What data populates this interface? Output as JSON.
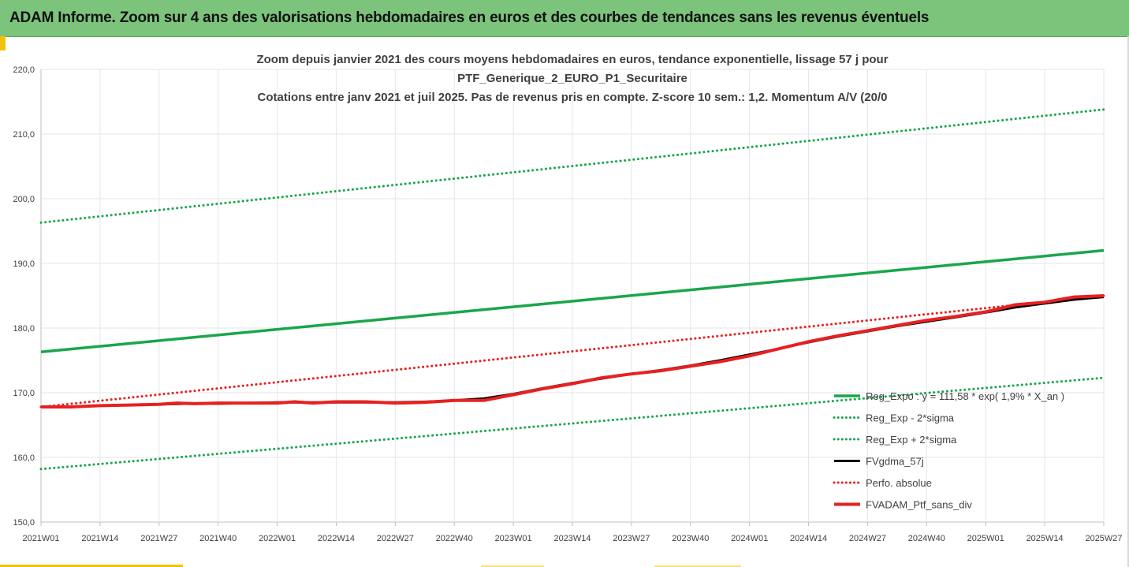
{
  "header": {
    "title": "ADAM Informe. Zoom sur 4 ans des valorisations hebdomadaires en euros et des courbes de tendances sans les revenus éventuels"
  },
  "chart_data": {
    "type": "line",
    "title_lines": [
      "Zoom depuis janvier 2021 des cours moyens hebdomadaires  en euros, tendance exponentielle, lissage 57 j pour",
      "PTF_Generique_2_EURO_P1_Securitaire",
      "Cotations entre janv 2021 et juil 2025. Pas de revenus pris en compte. Z-score 10 sem.: 1,2. Momentum A/V (20/0"
    ],
    "x_ticks": [
      "2021W01",
      "2021W14",
      "2021W27",
      "2021W40",
      "2022W01",
      "2022W14",
      "2022W27",
      "2022W40",
      "2023W01",
      "2023W14",
      "2023W27",
      "2023W40",
      "2024W01",
      "2024W14",
      "2024W27",
      "2024W40",
      "2025W01",
      "2025W14",
      "2025W27"
    ],
    "y_ticks": [
      "150,0",
      "160,0",
      "170,0",
      "180,0",
      "190,0",
      "200,0",
      "210,0",
      "220,0"
    ],
    "ylim": [
      150,
      220
    ],
    "grid": true,
    "legend_position": "bottom-right",
    "series": [
      {
        "name": "Reg_Expo : y = 111,58 * exp( 1,9% *  X_an )",
        "color": "#1aa64a",
        "style": "solid",
        "width": 3.5,
        "points": [
          [
            0,
            176.3
          ],
          [
            18,
            192.0
          ]
        ]
      },
      {
        "name": "Reg_Exp - 2*sigma",
        "color": "#1aa64a",
        "style": "dotted",
        "width": 3,
        "points": [
          [
            0,
            158.2
          ],
          [
            18,
            172.3
          ]
        ]
      },
      {
        "name": "Reg_Exp + 2*sigma",
        "color": "#1aa64a",
        "style": "dotted",
        "width": 3,
        "points": [
          [
            0,
            196.3
          ],
          [
            18,
            213.8
          ]
        ]
      },
      {
        "name": "FVgdma_57j",
        "color": "#000000",
        "style": "solid",
        "width": 3,
        "points": [
          [
            0,
            167.8
          ],
          [
            0.5,
            167.8
          ],
          [
            1,
            168.0
          ],
          [
            1.5,
            168.1
          ],
          [
            2,
            168.2
          ],
          [
            2.5,
            168.3
          ],
          [
            3,
            168.3
          ],
          [
            3.5,
            168.4
          ],
          [
            4,
            168.5
          ],
          [
            4.5,
            168.5
          ],
          [
            5,
            168.5
          ],
          [
            5.5,
            168.5
          ],
          [
            6,
            168.5
          ],
          [
            6.5,
            168.6
          ],
          [
            7,
            168.8
          ],
          [
            7.5,
            169.1
          ],
          [
            8,
            169.8
          ],
          [
            8.5,
            170.7
          ],
          [
            9,
            171.5
          ],
          [
            9.5,
            172.2
          ],
          [
            10,
            172.9
          ],
          [
            10.5,
            173.5
          ],
          [
            11,
            174.2
          ],
          [
            11.5,
            175.0
          ],
          [
            12,
            175.9
          ],
          [
            12.5,
            176.8
          ],
          [
            13,
            177.8
          ],
          [
            13.5,
            178.7
          ],
          [
            14,
            179.5
          ],
          [
            14.5,
            180.3
          ],
          [
            15,
            181.0
          ],
          [
            15.5,
            181.7
          ],
          [
            16,
            182.4
          ],
          [
            16.5,
            183.2
          ],
          [
            17,
            183.8
          ],
          [
            17.5,
            184.4
          ],
          [
            18,
            184.8
          ]
        ]
      },
      {
        "name": "Perfo. absolue",
        "color": "#e82020",
        "style": "dotted",
        "width": 3,
        "points": [
          [
            0,
            167.8
          ],
          [
            18,
            185.0
          ]
        ]
      },
      {
        "name": "FVADAM_Ptf_sans_div",
        "color": "#e82020",
        "style": "solid",
        "width": 4,
        "points": [
          [
            0,
            167.8
          ],
          [
            0.5,
            167.8
          ],
          [
            1,
            168.0
          ],
          [
            1.5,
            168.1
          ],
          [
            2,
            168.2
          ],
          [
            2.3,
            168.4
          ],
          [
            2.6,
            168.3
          ],
          [
            3,
            168.4
          ],
          [
            3.5,
            168.4
          ],
          [
            4,
            168.4
          ],
          [
            4.3,
            168.6
          ],
          [
            4.6,
            168.4
          ],
          [
            5,
            168.6
          ],
          [
            5.5,
            168.6
          ],
          [
            6,
            168.4
          ],
          [
            6.5,
            168.5
          ],
          [
            7,
            168.8
          ],
          [
            7.5,
            168.8
          ],
          [
            8,
            169.7
          ],
          [
            8.5,
            170.6
          ],
          [
            9,
            171.4
          ],
          [
            9.5,
            172.3
          ],
          [
            10,
            172.9
          ],
          [
            10.5,
            173.4
          ],
          [
            11,
            174.1
          ],
          [
            11.5,
            174.8
          ],
          [
            12,
            175.7
          ],
          [
            12.5,
            176.8
          ],
          [
            13,
            177.9
          ],
          [
            13.5,
            178.8
          ],
          [
            14,
            179.6
          ],
          [
            14.5,
            180.4
          ],
          [
            15,
            181.2
          ],
          [
            15.5,
            181.8
          ],
          [
            16,
            182.5
          ],
          [
            16.5,
            183.6
          ],
          [
            17,
            184.0
          ],
          [
            17.5,
            184.8
          ],
          [
            18,
            185.0
          ]
        ]
      }
    ]
  }
}
